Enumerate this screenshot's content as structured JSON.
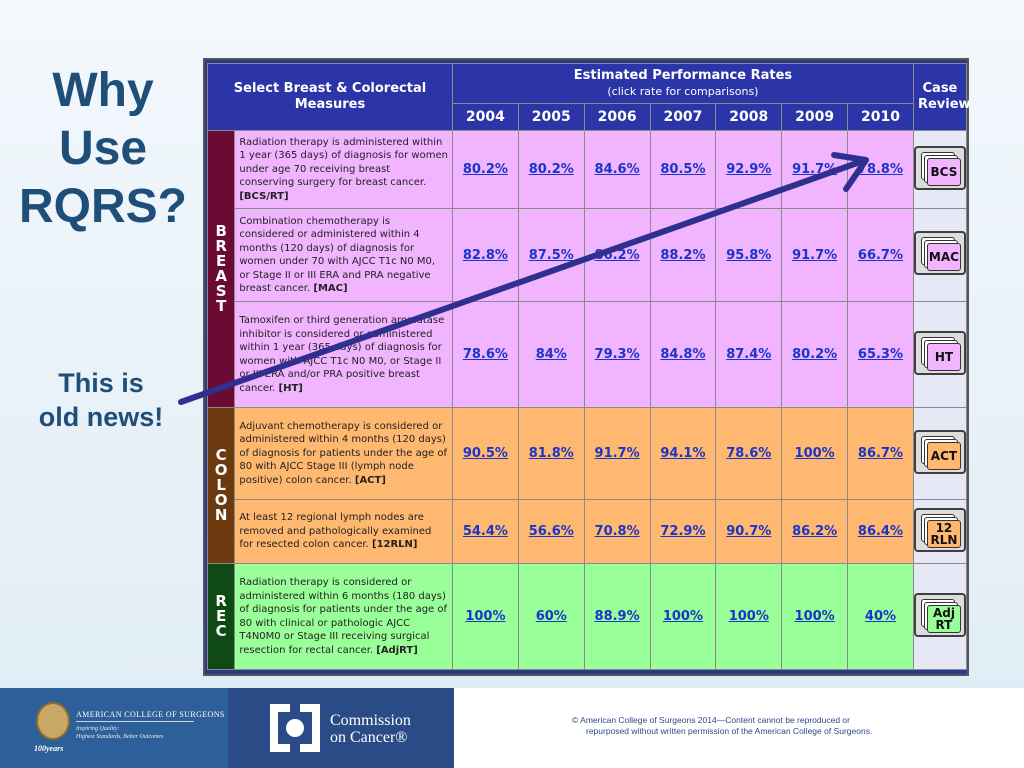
{
  "title": {
    "line1": "Why",
    "line2": "Use",
    "line3": "RQRS?"
  },
  "subtitle": {
    "line1": "This is",
    "line2": "old news!"
  },
  "table": {
    "measures_header": "Select Breast & Colorectal Measures",
    "rates_header": "Estimated Performance Rates",
    "rates_subheader": "(click rate for comparisons)",
    "case_header": "Case Review",
    "years": [
      "2004",
      "2005",
      "2006",
      "2007",
      "2008",
      "2009",
      "2010"
    ],
    "groups": [
      {
        "letters": [
          "B",
          "R",
          "E",
          "A",
          "S",
          "T"
        ],
        "color": "#6b0a33"
      },
      {
        "letters": [
          "C",
          "O",
          "L",
          "O",
          "N"
        ],
        "color": "#6b3a0f"
      },
      {
        "letters": [
          "R",
          "E",
          "C"
        ],
        "color": "#0f4a14"
      }
    ],
    "rows": [
      {
        "desc": "Radiation therapy is administered within 1 year (365 days) of diagnosis for women under age 70 receiving breast conserving surgery for breast cancer.",
        "code": "[BCS/RT]",
        "rates": [
          "80.2%",
          "80.2%",
          "84.6%",
          "80.5%",
          "92.9%",
          "91.7%",
          "78.8%"
        ],
        "case": "BCS"
      },
      {
        "desc": "Combination chemotherapy is considered or administered within 4 months (120 days) of diagnosis for women under 70 with AJCC T1c N0 M0, or Stage II or III ERA and PRA negative breast cancer.",
        "code": "[MAC]",
        "rates": [
          "82.8%",
          "87.5%",
          "86.2%",
          "88.2%",
          "95.8%",
          "91.7%",
          "66.7%"
        ],
        "case": "MAC"
      },
      {
        "desc": "Tamoxifen or third generation aromatase inhibitor is considered or administered within 1 year (365 days) of diagnosis for women with AJCC T1c N0 M0, or Stage II or III ERA and/or PRA positive breast cancer.",
        "code": "[HT]",
        "rates": [
          "78.6%",
          "84%",
          "79.3%",
          "84.8%",
          "87.4%",
          "80.2%",
          "65.3%"
        ],
        "case": "HT"
      },
      {
        "desc": "Adjuvant chemotherapy is considered or administered within 4 months (120 days) of diagnosis for patients under the age of 80 with AJCC Stage III (lymph node positive) colon cancer.",
        "code": "[ACT]",
        "rates": [
          "90.5%",
          "81.8%",
          "91.7%",
          "94.1%",
          "78.6%",
          "100%",
          "86.7%"
        ],
        "case": "ACT"
      },
      {
        "desc": "At least 12 regional lymph nodes are removed and pathologically examined for resected colon cancer.",
        "code": "[12RLN]",
        "rates": [
          "54.4%",
          "56.6%",
          "70.8%",
          "72.9%",
          "90.7%",
          "86.2%",
          "86.4%"
        ],
        "case_line1": "12",
        "case_line2": "RLN"
      },
      {
        "desc": "Radiation therapy is considered or administered within 6 months (180 days) of diagnosis for patients under the age of 80 with clinical or pathologic AJCC T4N0M0 or Stage III receiving surgical resection for rectal cancer.",
        "code": "[AdjRT]",
        "rates": [
          "100%",
          "60%",
          "88.9%",
          "100%",
          "100%",
          "100%",
          "40%"
        ],
        "case_line1": "Adj",
        "case_line2": "RT"
      }
    ],
    "colors": {
      "breast": "#f1b4ff",
      "colon": "#ffb870",
      "rectum": "#99ff99",
      "header": "#2b35a8",
      "link": "#1a35c8"
    }
  },
  "arrow": {
    "color": "#2f2f8f"
  },
  "footer": {
    "acs_name": "American College of Surgeons",
    "acs_tag1": "Inspiring Quality:",
    "acs_tag2": "Highest Standards, Better Outcomes",
    "acs_years": "100years",
    "coc_line1": "Commission",
    "coc_line2": "on Cancer®",
    "copyright_line1": "©  American College of Surgeons 2014—Content cannot be reproduced or",
    "copyright_line2": "repurposed  without written permission of the American College of Surgeons."
  }
}
